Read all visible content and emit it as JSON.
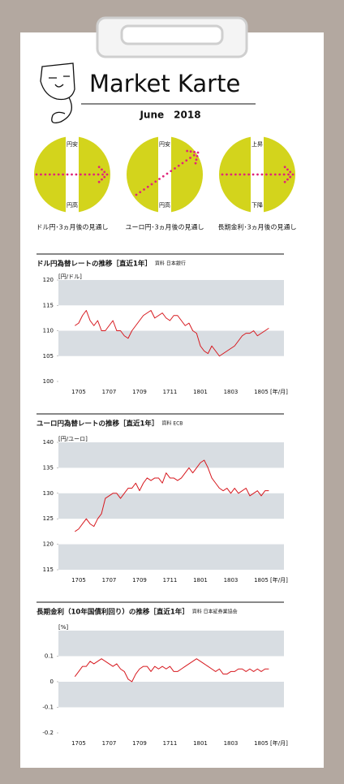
{
  "header": {
    "title": "Market Karte",
    "date": "June　2018"
  },
  "outlooks": [
    {
      "top": "円安",
      "bottom": "円高",
      "caption": "ドル円･3ヵ月後の見通し"
    },
    {
      "top": "円安",
      "bottom": "円高",
      "caption": "ユーロ円･3ヵ月後の見通し"
    },
    {
      "top": "上昇",
      "bottom": "下降",
      "caption": "長期金利･3ヵ月後の見通し"
    }
  ],
  "chart_data": [
    {
      "type": "line",
      "title": "ドル円為替レートの推移［直近1年］",
      "source": "資料 日本銀行",
      "y_unit": "[円/ドル]",
      "x_unit": "[年/月]",
      "color": "#d7191f",
      "categories": [
        null,
        "1705",
        null,
        null,
        null,
        null,
        null,
        null,
        null,
        "1707",
        null,
        null,
        null,
        null,
        null,
        null,
        null,
        "1709",
        null,
        null,
        null,
        null,
        null,
        null,
        null,
        "1711",
        null,
        null,
        null,
        null,
        null,
        null,
        null,
        "1801",
        null,
        null,
        null,
        null,
        null,
        null,
        null,
        "1803",
        null,
        null,
        null,
        null,
        null,
        null,
        null,
        "1805",
        null,
        null
      ],
      "values": [
        111,
        111.5,
        113,
        114,
        112,
        111,
        112,
        110,
        110,
        111,
        112,
        110,
        110,
        109,
        108.5,
        110,
        111,
        112,
        113,
        113.5,
        114,
        112.5,
        113,
        113.5,
        112.5,
        112,
        113,
        113,
        112,
        111,
        111.5,
        110,
        109.5,
        107,
        106,
        105.5,
        107,
        106,
        105,
        105.5,
        106,
        106.5,
        107,
        108,
        109,
        109.5,
        109.5,
        110,
        109,
        109.5,
        110,
        110.5
      ],
      "ylim": [
        100,
        120
      ],
      "yticks": [
        100,
        105,
        110,
        115,
        120
      ]
    },
    {
      "type": "line",
      "title": "ユーロ円為替レートの推移［直近1年］",
      "source": "資料 ECB",
      "y_unit": "[円/ユーロ]",
      "x_unit": "[年/月]",
      "color": "#d7191f",
      "categories": [
        null,
        "1705",
        null,
        null,
        null,
        null,
        null,
        null,
        null,
        "1707",
        null,
        null,
        null,
        null,
        null,
        null,
        null,
        "1709",
        null,
        null,
        null,
        null,
        null,
        null,
        null,
        "1711",
        null,
        null,
        null,
        null,
        null,
        null,
        null,
        "1801",
        null,
        null,
        null,
        null,
        null,
        null,
        null,
        "1803",
        null,
        null,
        null,
        null,
        null,
        null,
        null,
        "1805",
        null,
        null
      ],
      "values": [
        122.5,
        123,
        124,
        125,
        124,
        123.5,
        125,
        126,
        129,
        129.5,
        130,
        130,
        129,
        130,
        131,
        131,
        132,
        130.5,
        132,
        133,
        132.5,
        133,
        133,
        132,
        134,
        133,
        133,
        132.5,
        133,
        134,
        135,
        134,
        135,
        136,
        136.5,
        135,
        133,
        132,
        131,
        130.5,
        131,
        130,
        131,
        130,
        130.5,
        131,
        129.5,
        130,
        130.5,
        129.5,
        130.5,
        130.5
      ],
      "ylim": [
        115,
        140
      ],
      "yticks": [
        115,
        120,
        125,
        130,
        135,
        140
      ]
    },
    {
      "type": "line",
      "title": "長期金利（10年国債利回り）の推移［直近1年］",
      "source": "資料 日本証券業協会",
      "y_unit": "[%]",
      "x_unit": "[年/月]",
      "color": "#d7191f",
      "categories": [
        null,
        "1705",
        null,
        null,
        null,
        null,
        null,
        null,
        null,
        "1707",
        null,
        null,
        null,
        null,
        null,
        null,
        null,
        "1709",
        null,
        null,
        null,
        null,
        null,
        null,
        null,
        "1711",
        null,
        null,
        null,
        null,
        null,
        null,
        null,
        "1801",
        null,
        null,
        null,
        null,
        null,
        null,
        null,
        "1803",
        null,
        null,
        null,
        null,
        null,
        null,
        null,
        "1805",
        null,
        null
      ],
      "values": [
        0.02,
        0.04,
        0.06,
        0.06,
        0.08,
        0.07,
        0.08,
        0.09,
        0.08,
        0.07,
        0.06,
        0.07,
        0.05,
        0.04,
        0.01,
        0,
        0.03,
        0.05,
        0.06,
        0.06,
        0.04,
        0.06,
        0.05,
        0.06,
        0.05,
        0.06,
        0.04,
        0.04,
        0.05,
        0.06,
        0.07,
        0.08,
        0.09,
        0.08,
        0.07,
        0.06,
        0.05,
        0.04,
        0.05,
        0.03,
        0.03,
        0.04,
        0.04,
        0.05,
        0.05,
        0.04,
        0.05,
        0.04,
        0.05,
        0.04,
        0.05,
        0.05
      ],
      "ylim": [
        -0.2,
        0.2
      ],
      "yticks": [
        -0.2,
        -0.1,
        0,
        0.1
      ]
    }
  ]
}
